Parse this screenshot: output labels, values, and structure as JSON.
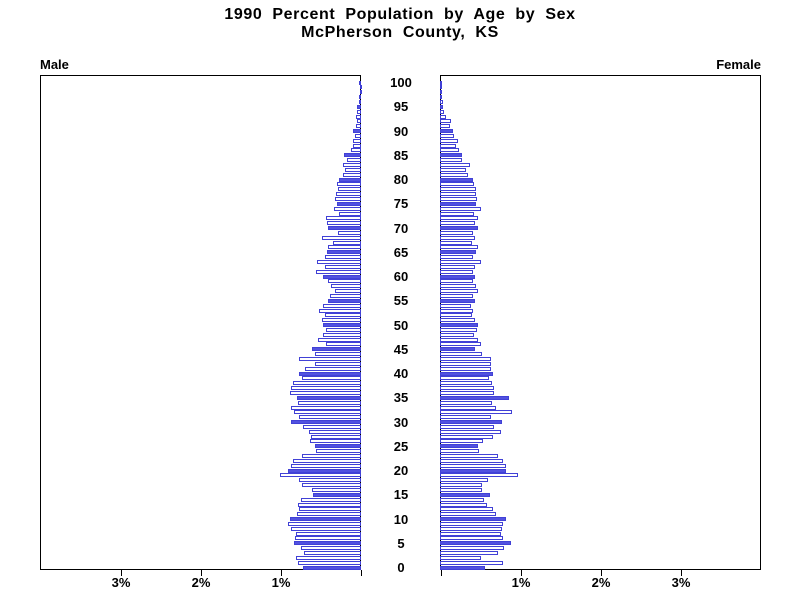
{
  "title": {
    "line1": "1990 Percent Population by Age by Sex",
    "line2": "McPherson County, KS"
  },
  "axis_labels": {
    "male": "Male",
    "female": "Female"
  },
  "colors": {
    "bar_fill": "#5252E0",
    "bar_border": "#4141D6",
    "axis": "#000000",
    "text": "#000000",
    "background": "#FFFFFF"
  },
  "chart_data": {
    "type": "bar",
    "variant": "population_pyramid",
    "title": "1990 Percent Population by Age by Sex",
    "subtitle": "McPherson County, KS",
    "left_series_label": "Male",
    "right_series_label": "Female",
    "x_unit": "percent of total population",
    "x_tick_percents": [
      0,
      1,
      2,
      3
    ],
    "x_tick_labels": [
      "1%",
      "2%",
      "3%"
    ],
    "x_max_percent": 4,
    "age_min": 0,
    "age_max": 100,
    "age_tick_step": 5,
    "age_tick_labels": [
      "0",
      "5",
      "10",
      "15",
      "20",
      "25",
      "30",
      "35",
      "40",
      "45",
      "50",
      "55",
      "60",
      "65",
      "70",
      "75",
      "80",
      "85",
      "90",
      "95",
      "100"
    ],
    "filled_bar_rule": "ages that are multiples of 5 are solid blue; other ages are white with blue outline",
    "series": [
      {
        "name": "Male",
        "side": "left",
        "ages_0_to_100_percent": [
          0.73,
          0.79,
          0.81,
          0.71,
          0.75,
          0.84,
          0.83,
          0.81,
          0.87,
          0.91,
          0.89,
          0.8,
          0.77,
          0.79,
          0.75,
          0.6,
          0.61,
          0.74,
          0.77,
          1.01,
          0.91,
          0.88,
          0.85,
          0.74,
          0.56,
          0.58,
          0.64,
          0.63,
          0.65,
          0.73,
          0.87,
          0.77,
          0.84,
          0.87,
          0.79,
          0.8,
          0.89,
          0.87,
          0.85,
          0.74,
          0.78,
          0.7,
          0.57,
          0.78,
          0.58,
          0.61,
          0.44,
          0.54,
          0.47,
          0.44,
          0.47,
          0.49,
          0.45,
          0.52,
          0.47,
          0.41,
          0.39,
          0.32,
          0.37,
          0.41,
          0.47,
          0.56,
          0.45,
          0.55,
          0.45,
          0.42,
          0.41,
          0.35,
          0.49,
          0.29,
          0.41,
          0.42,
          0.44,
          0.27,
          0.34,
          0.3,
          0.33,
          0.31,
          0.29,
          0.3,
          0.27,
          0.22,
          0.2,
          0.22,
          0.18,
          0.21,
          0.13,
          0.1,
          0.1,
          0.08,
          0.1,
          0.06,
          0.05,
          0.06,
          0.05,
          0.05,
          0.03,
          0.02,
          0.01,
          0.01,
          0.02
        ]
      },
      {
        "name": "Female",
        "side": "right",
        "ages_0_to_100_percent": [
          0.56,
          0.79,
          0.51,
          0.73,
          0.8,
          0.89,
          0.79,
          0.76,
          0.78,
          0.79,
          0.83,
          0.7,
          0.66,
          0.59,
          0.55,
          0.63,
          0.52,
          0.53,
          0.6,
          0.98,
          0.83,
          0.82,
          0.79,
          0.73,
          0.49,
          0.48,
          0.54,
          0.66,
          0.76,
          0.67,
          0.78,
          0.64,
          0.9,
          0.7,
          0.65,
          0.86,
          0.67,
          0.67,
          0.65,
          0.61,
          0.66,
          0.64,
          0.64,
          0.64,
          0.52,
          0.44,
          0.51,
          0.48,
          0.42,
          0.46,
          0.47,
          0.44,
          0.4,
          0.41,
          0.39,
          0.44,
          0.41,
          0.48,
          0.45,
          0.41,
          0.44,
          0.41,
          0.44,
          0.51,
          0.41,
          0.45,
          0.47,
          0.4,
          0.44,
          0.41,
          0.47,
          0.44,
          0.48,
          0.42,
          0.51,
          0.45,
          0.46,
          0.45,
          0.45,
          0.43,
          0.41,
          0.35,
          0.33,
          0.37,
          0.28,
          0.27,
          0.24,
          0.2,
          0.22,
          0.18,
          0.16,
          0.12,
          0.14,
          0.07,
          0.05,
          0.04,
          0.04,
          0.03,
          0.02,
          0.01,
          0.02
        ]
      }
    ]
  }
}
